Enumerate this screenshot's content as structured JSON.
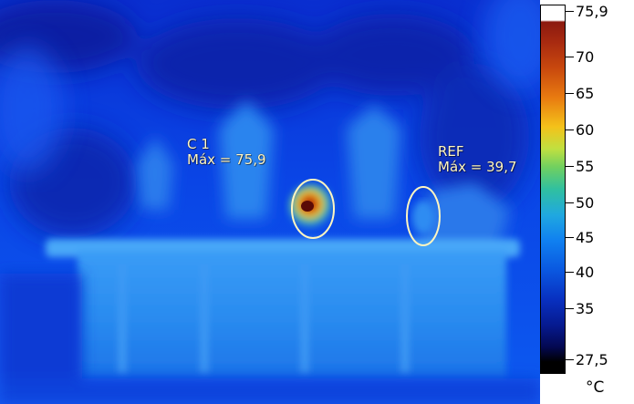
{
  "annotations": [
    {
      "name": "C 1",
      "max_label": "Máx = 75,9"
    },
    {
      "name": "REF",
      "max_label": "Máx = 39,7"
    }
  ],
  "color_scale": {
    "max_value": "75,9",
    "min_value": "27,5",
    "ticks": [
      "75,9",
      "70",
      "65",
      "60",
      "55",
      "50",
      "45",
      "40",
      "35",
      "27,5"
    ],
    "unit": "°C",
    "palette": [
      "#ffffff",
      "#8b1a0f",
      "#e87a10",
      "#f4c21a",
      "#70d060",
      "#20a8e0",
      "#0a58e0",
      "#061a90",
      "#000000"
    ]
  }
}
